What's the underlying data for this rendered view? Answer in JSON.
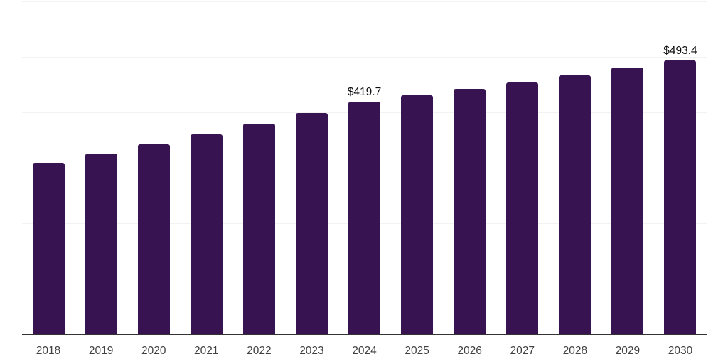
{
  "chart_data": {
    "type": "bar",
    "title": "",
    "xlabel": "",
    "ylabel": "",
    "categories": [
      "2018",
      "2019",
      "2020",
      "2021",
      "2022",
      "2023",
      "2024",
      "2025",
      "2026",
      "2027",
      "2028",
      "2029",
      "2030"
    ],
    "values": [
      308.7,
      325.7,
      342.3,
      360.5,
      378.9,
      398.1,
      419.7,
      430.8,
      441.9,
      453.4,
      467.0,
      481.1,
      493.4
    ],
    "bar_labels": [
      "",
      "",
      "",
      "",
      "",
      "",
      "$419.7",
      "",
      "",
      "",
      "",
      "",
      "$493.4"
    ],
    "ylim": [
      0,
      600
    ],
    "gridline_values": [
      100,
      200,
      300,
      400,
      500,
      600
    ],
    "grid": "horizontal-light",
    "legend": "none",
    "colors": {
      "bar": "#371351",
      "gridline": "#f2f2f2",
      "axis_line": "#333333",
      "tick_label": "#404040",
      "value_label": "#0d0d0d",
      "background": "#ffffff"
    }
  }
}
